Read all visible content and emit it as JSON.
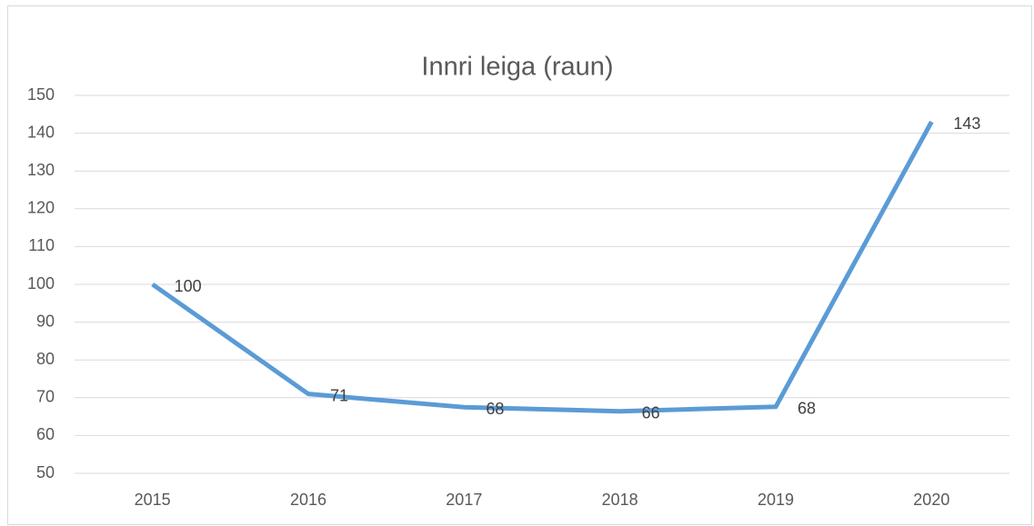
{
  "chart_data": {
    "type": "line",
    "title": "Innri leiga (raun)",
    "categories": [
      "2015",
      "2016",
      "2017",
      "2018",
      "2019",
      "2020"
    ],
    "series": [
      {
        "name": "Innri leiga",
        "color": "#5b9bd5",
        "values": [
          100,
          71,
          67.5,
          66.4,
          67.6,
          143
        ],
        "value_labels": [
          "100",
          "71",
          "68",
          "66",
          "68",
          "143"
        ]
      }
    ],
    "ylim": [
      50,
      150
    ],
    "yticks": [
      50,
      60,
      70,
      80,
      90,
      100,
      110,
      120,
      130,
      140,
      150
    ],
    "grid": true
  }
}
